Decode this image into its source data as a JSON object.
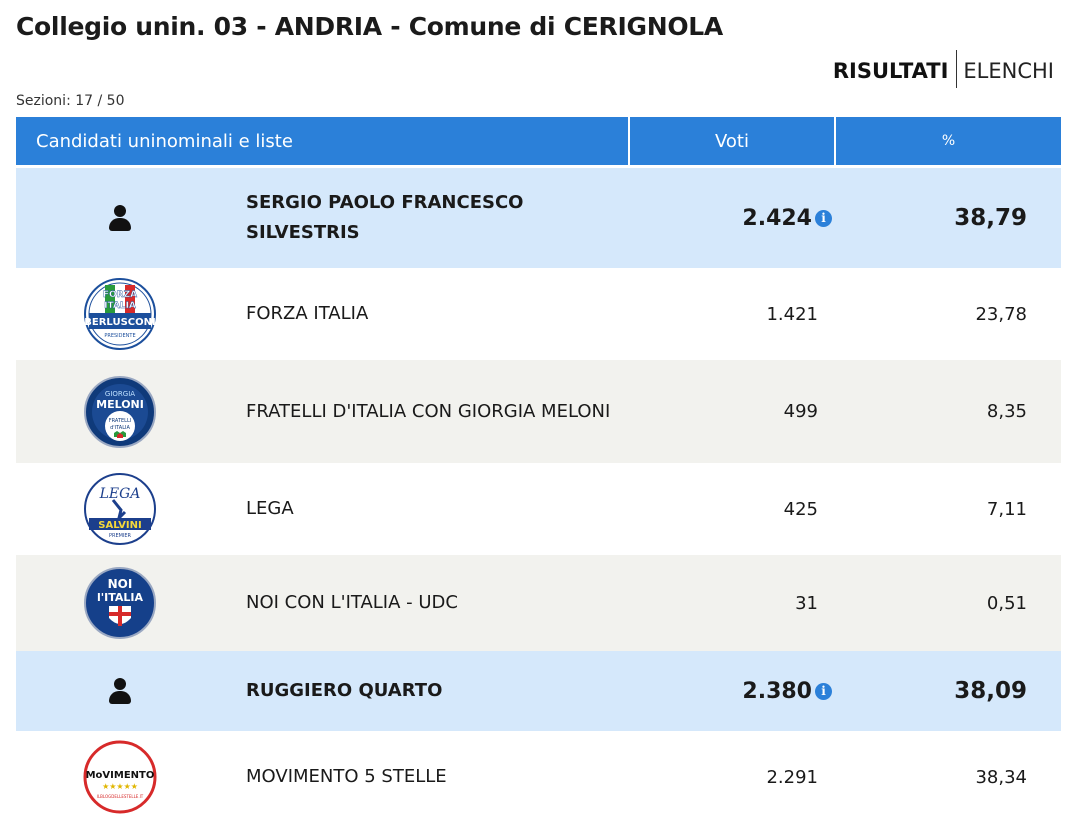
{
  "header": {
    "title": "Collegio unin. 03 - ANDRIA - Comune di CERIGNOLA",
    "tab_results": "RISULTATI",
    "tab_lists": "ELENCHI",
    "sections": "Sezioni: 17 / 50"
  },
  "table": {
    "col_name": "Candidati uninominali e liste",
    "col_votes": "Voti",
    "col_pct": "%",
    "rows": [
      {
        "type": "candidate",
        "name": "SERGIO PAOLO FRANCESCO SILVESTRIS",
        "votes": "2.424",
        "pct": "38,79",
        "icon": "person-icon"
      },
      {
        "type": "list",
        "name": "FORZA ITALIA",
        "votes": "1.421",
        "pct": "23,78",
        "icon": "forza-italia-logo"
      },
      {
        "type": "list",
        "name": "FRATELLI D'ITALIA CON GIORGIA MELONI",
        "votes": "499",
        "pct": "8,35",
        "icon": "fratelli-italia-logo"
      },
      {
        "type": "list",
        "name": "LEGA",
        "votes": "425",
        "pct": "7,11",
        "icon": "lega-logo"
      },
      {
        "type": "list",
        "name": "NOI CON L'ITALIA - UDC",
        "votes": "31",
        "pct": "0,51",
        "icon": "noi-con-italia-logo"
      },
      {
        "type": "candidate",
        "name": "RUGGIERO QUARTO",
        "votes": "2.380",
        "pct": "38,09",
        "icon": "person-icon"
      },
      {
        "type": "list",
        "name": "MOVIMENTO 5 STELLE",
        "votes": "2.291",
        "pct": "38,34",
        "icon": "movimento-5-stelle-logo"
      }
    ]
  },
  "logos": {
    "forza_italia": {
      "line1": "FORZA",
      "line2": "ITALIA",
      "line3": "BERLUSCONI",
      "line4": "PRESIDENTE"
    },
    "fratelli_italia": {
      "line1": "GIORGIA",
      "line2": "MELONI",
      "line3": "FRATELLI",
      "line4": "d'ITALIA"
    },
    "lega": {
      "line1": "LEGA",
      "line2": "SALVINI",
      "line3": "PREMIER"
    },
    "noi_italia": {
      "line1": "NOI",
      "line2": "l'ITALIA"
    },
    "m5s": {
      "line1": "MoVIMENTO",
      "line2": "★★★★★",
      "line3": "ILBLOGDELLESTELLE.IT"
    }
  },
  "colors": {
    "header_blue": "#2b80d9",
    "candidate_bg": "#d5e8fb",
    "grey_row_bg": "#f2f2ee"
  }
}
